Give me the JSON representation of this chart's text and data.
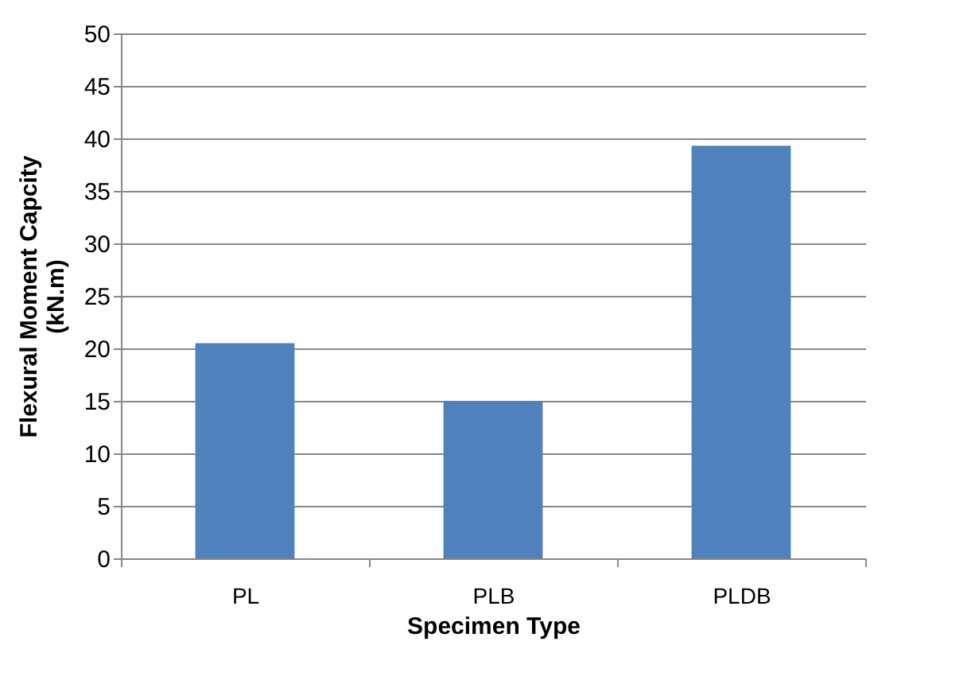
{
  "chart_data": {
    "type": "bar",
    "xlabel": "Specimen Type",
    "ylabel": "Flexural Moment Capcity\n(kN.m)",
    "categories": [
      "PL",
      "PLB",
      "PLDB"
    ],
    "values": [
      20.5,
      15,
      39.3
    ],
    "color": "#4f81bd",
    "ylim": [
      0,
      50
    ],
    "yticks": [
      0,
      5,
      10,
      15,
      20,
      25,
      30,
      35,
      40,
      45,
      50
    ],
    "grid": "y"
  }
}
